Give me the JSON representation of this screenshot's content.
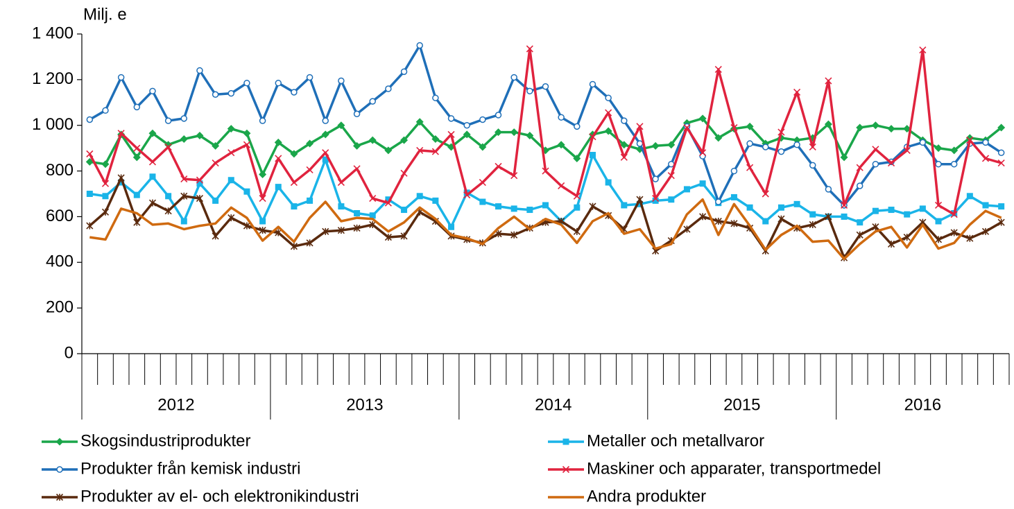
{
  "chart_data": {
    "type": "line",
    "y_label": "Milj. e",
    "groups": [
      {
        "label": "2012",
        "span": 12
      },
      {
        "label": "2013",
        "span": 12
      },
      {
        "label": "2014",
        "span": 12
      },
      {
        "label": "2015",
        "span": 12
      },
      {
        "label": "2016",
        "span": 11
      }
    ],
    "categories": [
      null,
      null,
      null,
      null,
      null,
      null,
      null,
      null,
      null,
      null,
      null,
      null,
      null,
      null,
      null,
      null,
      null,
      null,
      null,
      null,
      null,
      null,
      null,
      null,
      null,
      null,
      null,
      null,
      null,
      null,
      null,
      null,
      null,
      null,
      null,
      null,
      null,
      null,
      null,
      null,
      null,
      null,
      null,
      null,
      null,
      null,
      null,
      null,
      null,
      null,
      null,
      null,
      null,
      null,
      null,
      null,
      null,
      null,
      null
    ],
    "ylim": [
      0,
      1400
    ],
    "yticks": [
      0,
      200,
      400,
      600,
      800,
      {
        "value": 1000,
        "label": "1 000"
      },
      {
        "value": 1200,
        "label": "1 200"
      },
      {
        "value": 1400,
        "label": "1 400"
      }
    ],
    "grid": false,
    "series": [
      {
        "name": "Skogsindustriprodukter",
        "color": "#1aa64a",
        "marker": "diamond",
        "values": [
          840,
          830,
          960,
          860,
          965,
          915,
          940,
          955,
          910,
          985,
          965,
          785,
          925,
          875,
          920,
          960,
          1000,
          910,
          935,
          890,
          935,
          1015,
          940,
          905,
          960,
          905,
          970,
          970,
          955,
          890,
          915,
          855,
          960,
          975,
          915,
          895,
          910,
          915,
          1010,
          1030,
          945,
          985,
          995,
          920,
          945,
          935,
          945,
          1005,
          860,
          990,
          1000,
          985,
          985,
          935,
          900,
          890,
          945,
          935,
          990
        ]
      },
      {
        "name": "Metaller och metallvaror",
        "color": "#1ab4e8",
        "marker": "square",
        "values": [
          700,
          690,
          750,
          695,
          775,
          690,
          580,
          745,
          670,
          760,
          710,
          580,
          730,
          645,
          670,
          850,
          645,
          615,
          605,
          675,
          630,
          690,
          670,
          555,
          705,
          665,
          645,
          635,
          630,
          650,
          580,
          640,
          870,
          750,
          650,
          655,
          670,
          675,
          720,
          745,
          660,
          685,
          640,
          580,
          640,
          655,
          610,
          600,
          600,
          575,
          625,
          630,
          610,
          635,
          580,
          615,
          690,
          650,
          645
        ]
      },
      {
        "name": "Produkter från kemisk industri",
        "color": "#1f6fb8",
        "marker": "circle",
        "values": [
          1025,
          1065,
          1210,
          1080,
          1150,
          1020,
          1030,
          1240,
          1135,
          1140,
          1185,
          1020,
          1185,
          1145,
          1210,
          1020,
          1195,
          1050,
          1105,
          1160,
          1235,
          1350,
          1120,
          1030,
          1000,
          1025,
          1045,
          1210,
          1150,
          1170,
          1035,
          995,
          1180,
          1120,
          1020,
          920,
          765,
          830,
          995,
          865,
          665,
          800,
          920,
          905,
          885,
          915,
          825,
          720,
          650,
          735,
          830,
          840,
          905,
          925,
          830,
          830,
          920,
          925,
          880
        ]
      },
      {
        "name": "Maskiner och apparater, transportmedel",
        "color": "#e0233e",
        "marker": "x",
        "values": [
          875,
          745,
          965,
          900,
          840,
          905,
          765,
          760,
          835,
          880,
          915,
          680,
          855,
          750,
          805,
          880,
          750,
          810,
          680,
          660,
          790,
          890,
          885,
          960,
          695,
          750,
          820,
          780,
          1335,
          800,
          735,
          690,
          950,
          1055,
          860,
          995,
          680,
          780,
          990,
          880,
          1245,
          990,
          815,
          700,
          970,
          1145,
          905,
          1195,
          650,
          815,
          895,
          835,
          890,
          1330,
          650,
          610,
          935,
          855,
          835
        ]
      },
      {
        "name": "Produkter av el- och elektronikindustri",
        "color": "#5a2a0e",
        "marker": "star",
        "values": [
          560,
          620,
          770,
          575,
          660,
          625,
          690,
          680,
          515,
          595,
          560,
          540,
          530,
          470,
          485,
          535,
          540,
          550,
          565,
          510,
          515,
          620,
          580,
          515,
          500,
          485,
          525,
          520,
          550,
          575,
          580,
          535,
          645,
          605,
          545,
          675,
          450,
          495,
          545,
          600,
          580,
          570,
          550,
          450,
          590,
          550,
          565,
          600,
          420,
          520,
          555,
          480,
          510,
          575,
          500,
          530,
          505,
          535,
          575
        ]
      },
      {
        "name": "Andra produkter",
        "color": "#cf6a10",
        "marker": "none",
        "values": [
          510,
          500,
          635,
          615,
          565,
          570,
          545,
          560,
          570,
          640,
          595,
          495,
          555,
          490,
          595,
          665,
          580,
          595,
          590,
          535,
          575,
          640,
          590,
          520,
          505,
          480,
          550,
          600,
          545,
          590,
          565,
          485,
          580,
          615,
          525,
          545,
          460,
          480,
          610,
          675,
          520,
          655,
          560,
          455,
          520,
          560,
          490,
          495,
          415,
          480,
          535,
          555,
          465,
          565,
          460,
          485,
          565,
          625,
          595
        ]
      }
    ]
  }
}
